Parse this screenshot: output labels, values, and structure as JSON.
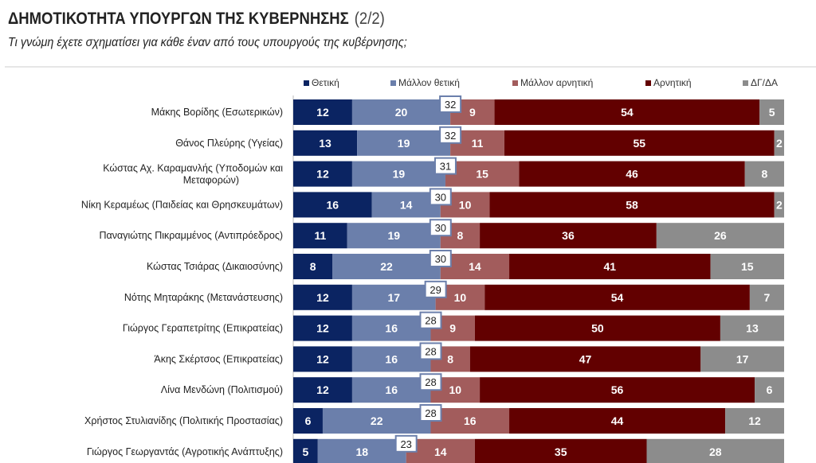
{
  "header": {
    "title": "ΔΗΜΟΤΙΚΟΤΗΤΑ ΥΠΟΥΡΓΩΝ ΤΗΣ ΚΥΒΕΡΝΗΣΗΣ",
    "page": "(2/2)",
    "subtitle": "Τι γνώμη έχετε σχηματίσει για κάθε έναν από τους υπουργούς της κυβέρνησης;"
  },
  "chart_data": {
    "type": "bar",
    "stacked": true,
    "orientation": "horizontal",
    "title": "ΔΗΜΟΤΙΚΟΤΗΤΑ ΥΠΟΥΡΓΩΝ ΤΗΣ ΚΥΒΕΡΝΗΣΗΣ (2/2)",
    "legend_position": "top",
    "xlim": [
      0,
      100
    ],
    "categories": [
      "Μάκης Βορίδης (Εσωτερικών)",
      "Θάνος Πλεύρης (Υγείας)",
      "Κώστας Αχ. Καραμανλής (Υποδομών και Μεταφορών)",
      "Νίκη Κεραμέως (Παιδείας και Θρησκευμάτων)",
      "Παναγιώτης Πικραμμένος (Αντιπρόεδρος)",
      "Κώστας Τσιάρας (Δικαιοσύνης)",
      "Νότης Μηταράκης (Μετανάστευσης)",
      "Γιώργος Γεραπετρίτης (Επικρατείας)",
      "Άκης Σκέρτσος (Επικρατείας)",
      "Λίνα Μενδώνη (Πολιτισμού)",
      "Χρήστος Στυλιανίδης (Πολιτικής Προστασίας)",
      "Γιώργος Γεωργαντάς (Αγροτικής Ανάπτυξης)"
    ],
    "series": [
      {
        "name": "Θετική",
        "color": "#0b2462",
        "values": [
          12,
          13,
          12,
          16,
          11,
          8,
          12,
          12,
          12,
          12,
          6,
          5
        ]
      },
      {
        "name": "Μάλλον θετική",
        "color": "#6b7fab",
        "values": [
          20,
          19,
          19,
          14,
          19,
          22,
          17,
          16,
          16,
          16,
          22,
          18
        ]
      },
      {
        "name": "Μάλλον αρνητική",
        "color": "#a25c5c",
        "values": [
          9,
          11,
          15,
          10,
          8,
          14,
          10,
          9,
          8,
          10,
          16,
          14
        ]
      },
      {
        "name": "Αρνητική",
        "color": "#620000",
        "values": [
          54,
          55,
          46,
          58,
          36,
          41,
          54,
          50,
          47,
          56,
          44,
          35
        ]
      },
      {
        "name": "ΔΓ/ΔΑ",
        "color": "#8c8c8c",
        "values": [
          5,
          2,
          8,
          2,
          26,
          15,
          7,
          13,
          17,
          6,
          12,
          28
        ]
      }
    ],
    "positive_totals": [
      32,
      32,
      31,
      30,
      30,
      30,
      29,
      28,
      28,
      28,
      28,
      23
    ]
  }
}
